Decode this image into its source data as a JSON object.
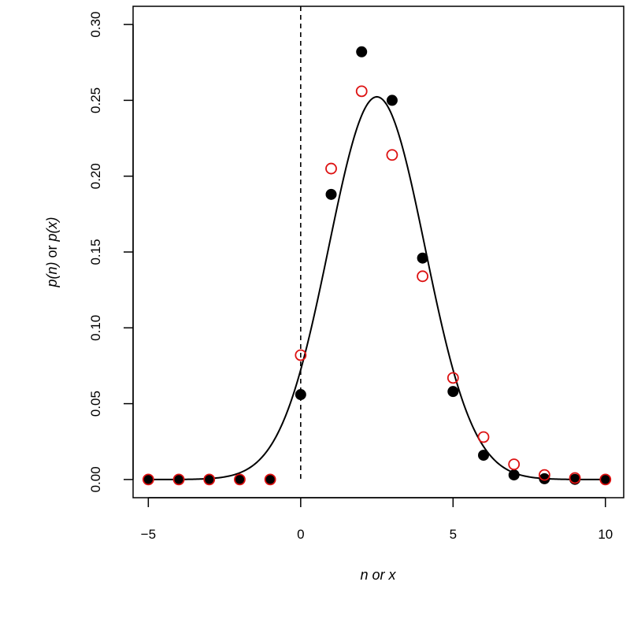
{
  "chart_data": {
    "type": "scatter",
    "title": "",
    "xlabel": {
      "part1": "n",
      "part2": " or ",
      "part3": "x"
    },
    "ylabel": {
      "part1": "p(n)",
      "part2": " or ",
      "part3": "p(x)"
    },
    "xlim": [
      -5.5,
      10.6
    ],
    "ylim": [
      -0.012,
      0.312
    ],
    "x_ticks": [
      -5,
      0,
      5,
      10
    ],
    "x_tick_labels": [
      "−5",
      "0",
      "5",
      "10"
    ],
    "y_ticks": [
      0.0,
      0.05,
      0.1,
      0.15,
      0.2,
      0.25,
      0.3
    ],
    "y_tick_labels": [
      "0.00",
      "0.05",
      "0.10",
      "0.15",
      "0.20",
      "0.25",
      "0.30"
    ],
    "grid": false,
    "legend": "none",
    "vline_x": 0,
    "series": [
      {
        "kind": "filled-points",
        "color": "#000000",
        "x": [
          -5,
          -4,
          -3,
          -2,
          -1,
          0,
          1,
          2,
          3,
          4,
          5,
          6,
          7,
          8,
          9,
          10
        ],
        "y": [
          0,
          0,
          0,
          0,
          0,
          0.056,
          0.188,
          0.282,
          0.25,
          0.146,
          0.058,
          0.016,
          0.003,
          0.0005,
          0.0001,
          0
        ]
      },
      {
        "kind": "open-points",
        "color": "#dd1111",
        "x": [
          -5,
          -4,
          -3,
          -2,
          -1,
          0,
          1,
          2,
          3,
          4,
          5,
          6,
          7,
          8,
          9,
          10
        ],
        "y": [
          0,
          0,
          0,
          0,
          0,
          0.082,
          0.205,
          0.256,
          0.214,
          0.134,
          0.067,
          0.028,
          0.01,
          0.003,
          0.001,
          0
        ]
      },
      {
        "kind": "curve",
        "color": "#000000",
        "mean": 2.5,
        "sd": 1.5811,
        "x_from": -5,
        "x_to": 10
      }
    ]
  }
}
